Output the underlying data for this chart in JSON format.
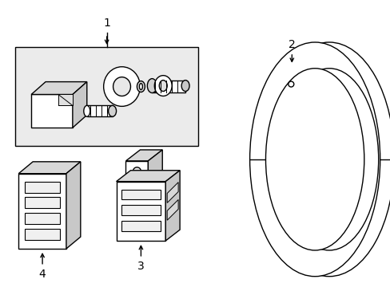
{
  "background_color": "#ffffff",
  "line_color": "#000000",
  "box_fill": "#ebebeb",
  "fig_width": 4.89,
  "fig_height": 3.6,
  "dpi": 100
}
